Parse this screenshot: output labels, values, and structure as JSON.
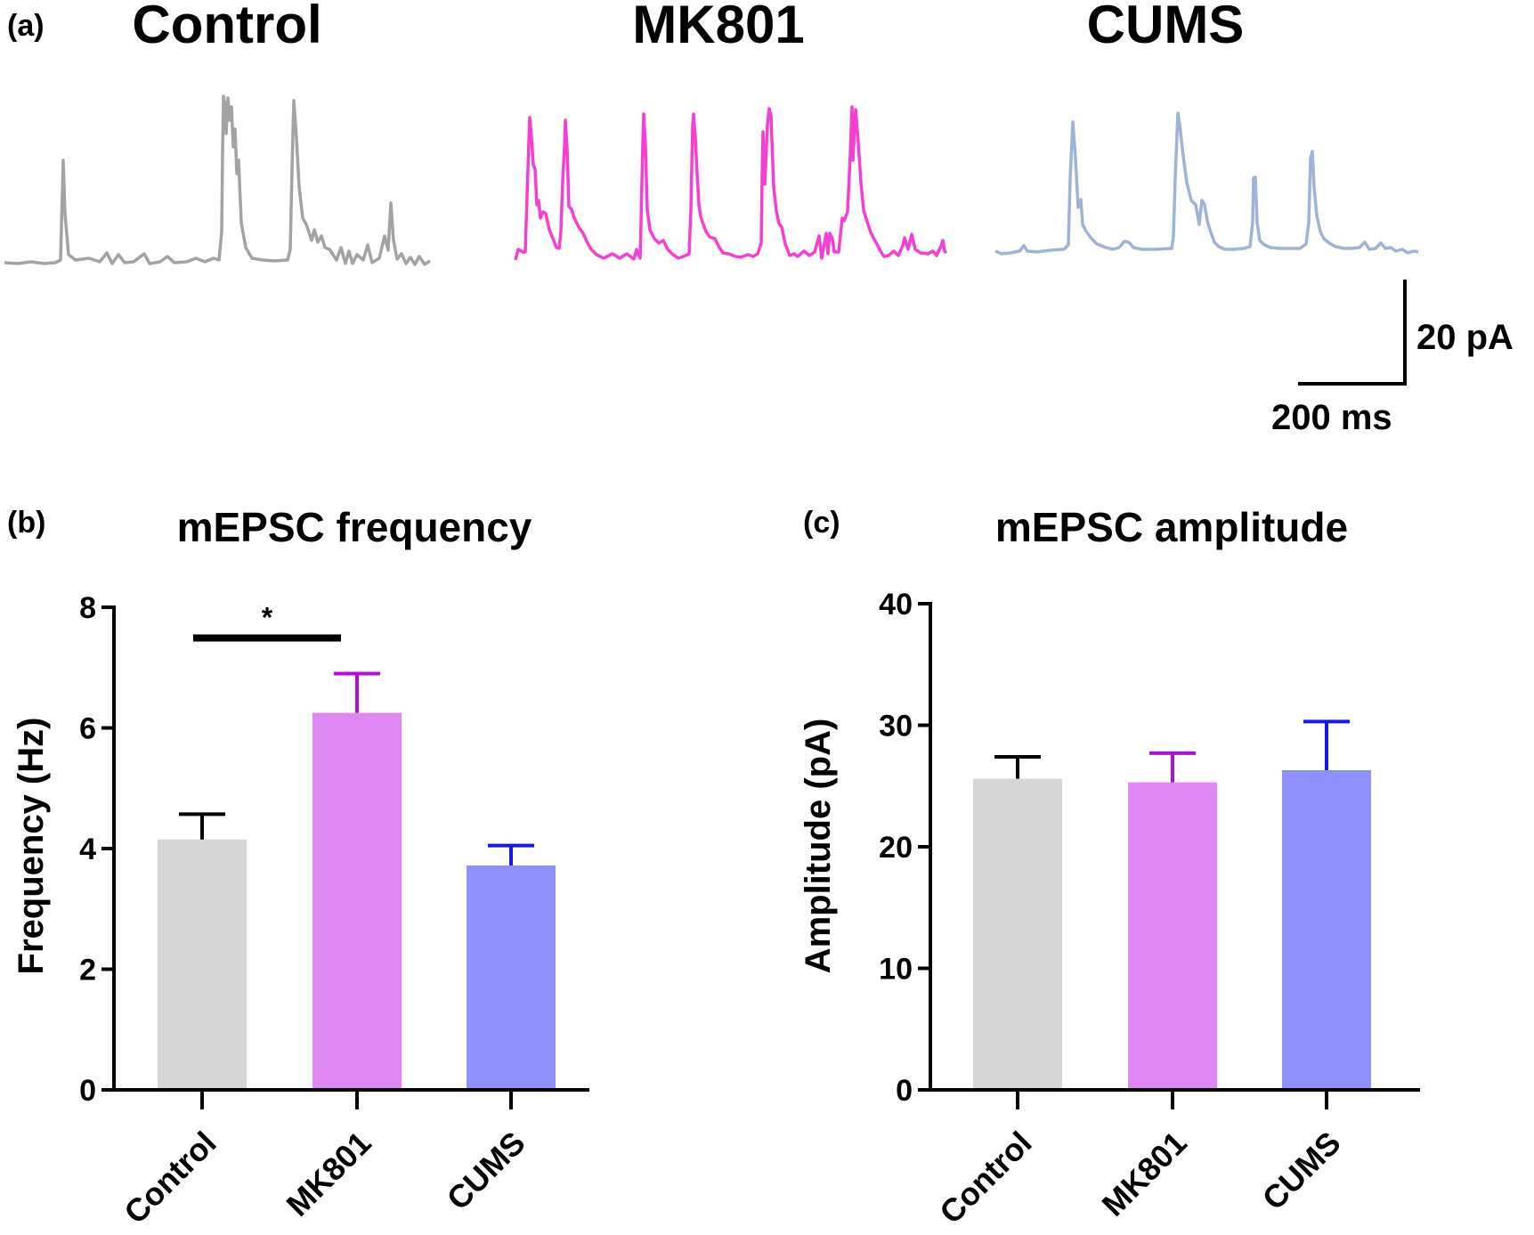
{
  "panels": {
    "a": "(a)",
    "b": "(b)",
    "c": "(c)"
  },
  "traces": {
    "groups": [
      {
        "label": "Control",
        "color": "#a3a3a3"
      },
      {
        "label": "MK801",
        "color": "#f53fd2"
      },
      {
        "label": "CUMS",
        "color": "#9fb3d6"
      }
    ],
    "scale_bar": {
      "current": "20 pA",
      "time": "200 ms"
    }
  },
  "chart_data": [
    {
      "type": "bar",
      "title": "mEPSC frequency",
      "ylabel": "Frequency (Hz)",
      "xlabel": "",
      "categories": [
        "Control",
        "MK801",
        "CUMS"
      ],
      "values": [
        4.15,
        6.25,
        3.72
      ],
      "errors": [
        0.42,
        0.65,
        0.33
      ],
      "bar_colors": [
        "#d6d6d6",
        "#de86f4",
        "#8f8ffe"
      ],
      "error_colors": [
        "#000000",
        "#b10fd6",
        "#1717ee"
      ],
      "ylim": [
        0,
        8
      ],
      "yticks": [
        "0",
        "2",
        "4",
        "6",
        "8"
      ],
      "significance": {
        "pair": [
          "Control",
          "MK801"
        ],
        "label": "*"
      }
    },
    {
      "type": "bar",
      "title": "mEPSC amplitude",
      "ylabel": "Amplitude (pA)",
      "xlabel": "",
      "categories": [
        "Control",
        "MK801",
        "CUMS"
      ],
      "values": [
        25.6,
        25.3,
        26.3
      ],
      "errors": [
        1.8,
        2.4,
        4.0
      ],
      "bar_colors": [
        "#d6d6d6",
        "#de86f4",
        "#8f8ffe"
      ],
      "error_colors": [
        "#000000",
        "#b10fd6",
        "#1717ee"
      ],
      "ylim": [
        0,
        40
      ],
      "yticks": [
        "0",
        "10",
        "20",
        "30",
        "40"
      ]
    }
  ]
}
